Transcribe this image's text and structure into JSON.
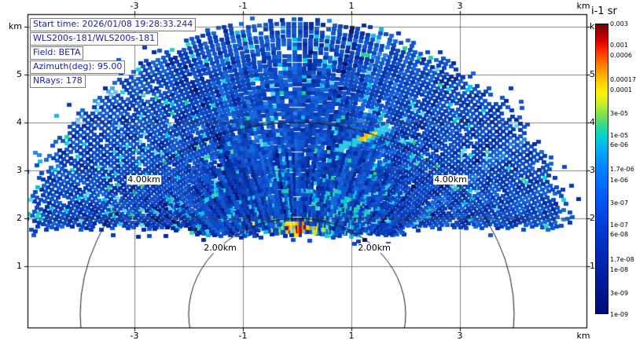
{
  "info_box": {
    "text_color": "#1c22a8",
    "lines": [
      "Start time: 2026/01/08 19:28:33.244",
      "WLS200s-181/WLS200s-181",
      "Field: BETA",
      "Azimuth(deg): 95.00",
      "NRays: 178"
    ]
  },
  "axes": {
    "x_unit": "km",
    "y_unit": "km",
    "x_tick_labels": [
      "-3",
      "-1",
      "1",
      "3"
    ],
    "x_ticks_km": [
      -3,
      -1,
      1,
      3
    ],
    "y_tick_labels": [
      "km",
      "5",
      "4",
      "3",
      "2",
      "1"
    ],
    "y_ticks_km": [
      6,
      5,
      4,
      3,
      2,
      1
    ]
  },
  "range_rings": [
    {
      "radius_km": 2,
      "label": "2.00km"
    },
    {
      "radius_km": 4,
      "label": "4.00km"
    }
  ],
  "colorbar": {
    "title": "i-1 sr",
    "vmax": 0.003,
    "vmin": 1e-09,
    "tick_labels": [
      "0.003",
      "0.001",
      "0.0006",
      "0.00017",
      "0.0001",
      "3e-05",
      "1e-05",
      "6e-06",
      "1.7e-06",
      "1e-06",
      "3e-07",
      "1e-07",
      "6e-08",
      "1.7e-08",
      "1e-08",
      "3e-09",
      "1e-09"
    ],
    "gradient_stops": [
      {
        "f": 0.0,
        "c": "#7a0000"
      },
      {
        "f": 0.03,
        "c": "#a30000"
      },
      {
        "f": 0.055,
        "c": "#d40000"
      },
      {
        "f": 0.085,
        "c": "#ff2000"
      },
      {
        "f": 0.12,
        "c": "#ff5c00"
      },
      {
        "f": 0.155,
        "c": "#ff9300"
      },
      {
        "f": 0.195,
        "c": "#ffc800"
      },
      {
        "f": 0.235,
        "c": "#fff200"
      },
      {
        "f": 0.275,
        "c": "#c9ee2e"
      },
      {
        "f": 0.315,
        "c": "#7be04e"
      },
      {
        "f": 0.355,
        "c": "#2fd898"
      },
      {
        "f": 0.39,
        "c": "#00d2cf"
      },
      {
        "f": 0.425,
        "c": "#00b4f2"
      },
      {
        "f": 0.465,
        "c": "#0096ff"
      },
      {
        "f": 0.53,
        "c": "#0074ff"
      },
      {
        "f": 0.61,
        "c": "#0057f2"
      },
      {
        "f": 0.7,
        "c": "#003dd6"
      },
      {
        "f": 0.8,
        "c": "#0029b6"
      },
      {
        "f": 0.9,
        "c": "#001a98"
      },
      {
        "f": 1.0,
        "c": "#000a78"
      }
    ]
  },
  "chart_data": {
    "type": "heatmap",
    "scan_type": "RHI (fixed azimuth, elevation 0-180 deg)",
    "field": "BETA",
    "units_label": "i-1 sr",
    "azimuth_deg": 95.0,
    "n_rays": 178,
    "start_time": "2026/01/08 19:28:33.244",
    "instrument": "WLS200s-181/WLS200s-181",
    "x_axis": {
      "unit": "km",
      "ticks": [
        -3,
        -1,
        1,
        3
      ],
      "range": [
        -5.1,
        5.35
      ]
    },
    "y_axis": {
      "unit": "km",
      "ticks": [
        1,
        2,
        3,
        4,
        5,
        6
      ],
      "range": [
        -0.3,
        6.3
      ]
    },
    "range_rings_km": [
      2,
      4
    ],
    "max_range_km": 6.2,
    "min_visible_height_km": 1.6,
    "color_scale": {
      "type": "log",
      "vmin": 1e-09,
      "vmax": 0.003
    },
    "background_field": "noisy blue speckle, values roughly 1e-08 to 1e-06, dark radial streaks converging to the origin inside r<3.5 km",
    "features": [
      {
        "name": "strong-backscatter-core",
        "x_km": [
          -0.75,
          0.95
        ],
        "y_km": [
          1.55,
          2.1
        ],
        "peak_value": 0.003,
        "colors": "red/orange center with yellow-green-cyan fringe"
      },
      {
        "name": "cyan-green-plume-above-core",
        "x_km": [
          0.15,
          1.3
        ],
        "y_km": [
          2.0,
          2.6
        ],
        "value": "~1e-05"
      },
      {
        "name": "inclined-aerosol-streak",
        "from_km": [
          0.72,
          3.42
        ],
        "to_km": [
          1.7,
          3.9
        ],
        "value": "~1e-05 cyan with yellow mid-section"
      },
      {
        "name": "faint-streak-upper-left",
        "from_km": [
          -4.15,
          3.95
        ],
        "to_km": [
          -3.35,
          4.72
        ],
        "value": "light blue"
      }
    ],
    "palette_blues": [
      "#03136e",
      "#062a9c",
      "#0a3ab4",
      "#0e49c6",
      "#1157d2",
      "#1668dc",
      "#2b85e8"
    ],
    "palette_cyan_speckles": [
      "#00c4e8",
      "#19d2e0",
      "#5fd8ef"
    ],
    "palette_green_speckles": [
      "#1ed48e",
      "#3cd6b0"
    ],
    "palette_cyan_streaks": [
      "#00b0dc",
      "#2cc8e8"
    ],
    "palette_core_hot": [
      "#e01800",
      "#ff2a00",
      "#b80000",
      "#ff5400"
    ],
    "palette_core_warm": [
      "#ff9000",
      "#ffc000",
      "#ffe000"
    ],
    "palette_core_fringe": [
      "#ffe84a",
      "#c6e83c",
      "#7fd84f",
      "#2ed0a6",
      "#00c8e0",
      "#58c8f0"
    ],
    "palette_streak_hot": [
      "#ffe000",
      "#ffb400",
      "#c8e83c"
    ],
    "palette_faint_streak": [
      "#4fa8e0",
      "#77c0ec",
      "#3b97dc"
    ],
    "grid_color": "#3a3a3a",
    "ring_color": "#161616",
    "frame_color": "#000000"
  }
}
